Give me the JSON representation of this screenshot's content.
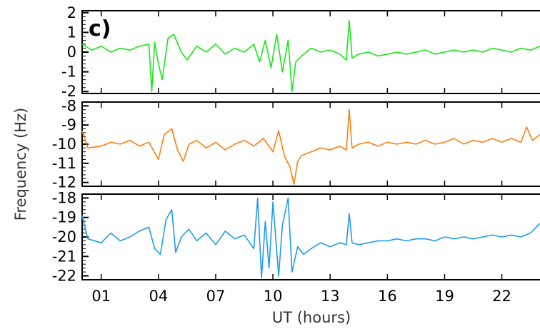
{
  "chart_data": {
    "type": "line",
    "panel_label": "c)",
    "xlabel": "UT (hours)",
    "ylabel": "Frequency (Hz)",
    "xlim": [
      0,
      24
    ],
    "x_ticks": [
      1,
      4,
      7,
      10,
      13,
      16,
      19,
      22
    ],
    "x_tick_labels": [
      "01",
      "04",
      "07",
      "10",
      "13",
      "16",
      "19",
      "22"
    ],
    "panels": [
      {
        "color": "#19e619",
        "ylim": [
          -2.1,
          2.1
        ],
        "y_ticks": [
          -2,
          -1,
          0,
          1,
          2
        ],
        "y_tick_labels": [
          "-2",
          "-1",
          "0",
          "1",
          "2"
        ],
        "x": [
          0,
          0.5,
          1,
          1.5,
          2,
          2.5,
          3,
          3.5,
          3.65,
          3.8,
          4,
          4.2,
          4.5,
          4.8,
          5.2,
          5.5,
          6,
          6.5,
          7,
          7.5,
          8,
          8.5,
          9,
          9.3,
          9.6,
          9.9,
          10.2,
          10.5,
          10.8,
          11.0,
          11.2,
          11.5,
          12,
          12.5,
          13,
          13.5,
          13.85,
          14.0,
          14.15,
          14.5,
          15,
          15.5,
          16,
          16.5,
          17,
          17.5,
          18,
          18.5,
          19,
          19.5,
          20,
          20.5,
          21,
          21.5,
          22,
          22.5,
          23,
          23.5,
          24
        ],
        "y": [
          0.4,
          0.1,
          0.3,
          0.0,
          0.2,
          0.1,
          0.3,
          0.4,
          -2.0,
          0.5,
          -0.6,
          -1.4,
          0.7,
          0.9,
          0.0,
          -0.4,
          0.3,
          0.0,
          0.4,
          -0.1,
          0.2,
          0.0,
          0.4,
          -0.5,
          0.6,
          -0.8,
          0.9,
          -1.0,
          0.6,
          -2.0,
          -0.5,
          -0.2,
          0.2,
          0.0,
          0.1,
          -0.1,
          -0.4,
          1.6,
          -0.3,
          -0.1,
          0.0,
          -0.2,
          -0.1,
          0.0,
          -0.1,
          0.0,
          0.1,
          -0.1,
          0.0,
          0.1,
          0.0,
          0.1,
          0.0,
          0.2,
          0.1,
          0.0,
          0.2,
          0.1,
          0.3
        ]
      },
      {
        "color": "#ff7f0e",
        "ylim": [
          -12.2,
          -7.8
        ],
        "y_ticks": [
          -12,
          -11,
          -10,
          -9,
          -8
        ],
        "y_tick_labels": [
          "-12",
          "-11",
          "-10",
          "-9",
          "-8"
        ],
        "x": [
          0,
          0.3,
          1,
          1.5,
          2,
          2.5,
          3,
          3.5,
          4,
          4.3,
          4.7,
          5.0,
          5.3,
          5.6,
          6,
          6.5,
          7,
          7.5,
          8,
          8.5,
          9,
          9.5,
          10,
          10.3,
          10.6,
          10.9,
          11.1,
          11.3,
          11.5,
          12,
          12.5,
          13,
          13.5,
          13.85,
          14.0,
          14.15,
          14.5,
          15,
          15.5,
          16,
          16.5,
          17,
          17.5,
          18,
          18.5,
          19,
          19.5,
          20,
          20.5,
          21,
          21.5,
          22,
          22.5,
          23,
          23.3,
          23.6,
          24
        ],
        "y": [
          -9.3,
          -10.2,
          -10.1,
          -9.9,
          -10.0,
          -9.8,
          -10.1,
          -9.9,
          -10.8,
          -9.5,
          -9.2,
          -10.3,
          -10.9,
          -10.0,
          -9.8,
          -10.2,
          -9.9,
          -10.3,
          -10.0,
          -9.8,
          -10.1,
          -9.7,
          -10.4,
          -9.3,
          -10.6,
          -11.2,
          -12.1,
          -10.9,
          -10.6,
          -10.4,
          -10.2,
          -10.3,
          -10.1,
          -10.3,
          -8.2,
          -10.2,
          -10.0,
          -9.9,
          -10.1,
          -9.9,
          -10.0,
          -9.9,
          -10.0,
          -9.8,
          -10.0,
          -9.9,
          -9.7,
          -10.0,
          -9.8,
          -9.9,
          -9.7,
          -9.9,
          -9.7,
          -9.9,
          -9.1,
          -9.8,
          -9.5
        ]
      },
      {
        "color": "#1e9bf0",
        "ylim": [
          -22.2,
          -17.8
        ],
        "y_ticks": [
          -22,
          -21,
          -20,
          -19,
          -18
        ],
        "y_tick_labels": [
          "-22",
          "-21",
          "-20",
          "-19",
          "-18"
        ],
        "x": [
          0,
          0.3,
          1,
          1.5,
          2,
          2.5,
          3,
          3.5,
          3.8,
          4.1,
          4.4,
          4.7,
          4.9,
          5.2,
          5.6,
          6,
          6.5,
          7,
          7.5,
          8,
          8.5,
          9,
          9.2,
          9.4,
          9.6,
          9.8,
          10.0,
          10.3,
          10.5,
          10.8,
          11.0,
          11.3,
          11.6,
          12,
          12.5,
          13,
          13.5,
          13.85,
          14.0,
          14.15,
          14.5,
          15,
          15.5,
          16,
          16.5,
          17,
          17.5,
          18,
          18.5,
          19,
          19.5,
          20,
          20.5,
          21,
          21.5,
          22,
          22.5,
          23,
          23.5,
          24
        ],
        "y": [
          -18.9,
          -20.1,
          -20.3,
          -19.8,
          -20.2,
          -20.0,
          -19.7,
          -19.5,
          -20.6,
          -20.9,
          -19.1,
          -18.6,
          -20.8,
          -20.0,
          -19.6,
          -20.2,
          -19.8,
          -20.4,
          -19.7,
          -20.1,
          -19.9,
          -20.6,
          -18.0,
          -22.1,
          -19.2,
          -21.6,
          -18.2,
          -22.0,
          -19.4,
          -18.0,
          -21.8,
          -20.5,
          -20.9,
          -20.6,
          -20.3,
          -20.5,
          -20.3,
          -20.4,
          -18.8,
          -20.3,
          -20.4,
          -20.3,
          -20.2,
          -20.2,
          -20.1,
          -20.2,
          -20.1,
          -20.1,
          -20.2,
          -20.0,
          -20.1,
          -20.0,
          -20.1,
          -20.0,
          -19.9,
          -20.0,
          -19.9,
          -20.0,
          -19.8,
          -19.3
        ]
      }
    ]
  }
}
